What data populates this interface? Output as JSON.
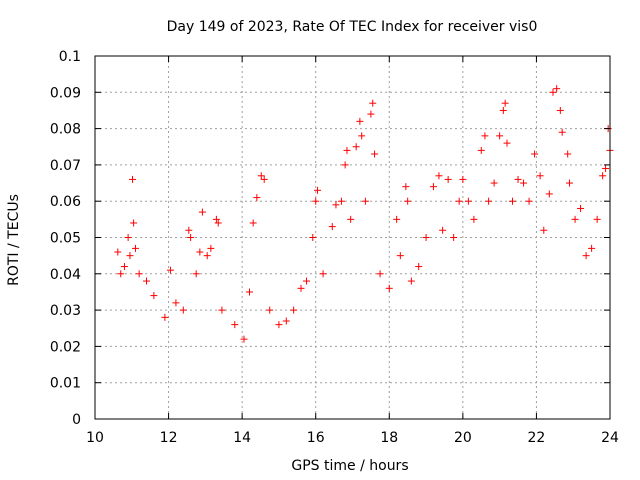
{
  "chart_data": {
    "type": "scatter",
    "title": "Day 149 of 2023, Rate Of TEC Index for receiver vis0",
    "xlabel": "GPS time / hours",
    "ylabel": "ROTI / TECUs",
    "xlim": [
      10,
      24
    ],
    "ylim": [
      0,
      0.1
    ],
    "x_ticks": [
      10,
      12,
      14,
      16,
      18,
      20,
      22,
      24
    ],
    "x_tick_labels": [
      "10",
      "12",
      "14",
      "16",
      "18",
      "20",
      "22",
      "24"
    ],
    "y_ticks": [
      0,
      0.01,
      0.02,
      0.03,
      0.04,
      0.05,
      0.06,
      0.07,
      0.08,
      0.09,
      0.1
    ],
    "y_tick_labels": [
      "0",
      "0.01",
      "0.02",
      "0.03",
      "0.04",
      "0.05",
      "0.06",
      "0.07",
      "0.08",
      "0.09",
      "0.1"
    ],
    "grid": true,
    "marker": "+",
    "color": "#ff0000",
    "series": [
      {
        "name": "vis0",
        "points": [
          [
            10.62,
            0.046
          ],
          [
            10.7,
            0.04
          ],
          [
            10.8,
            0.042
          ],
          [
            10.9,
            0.05
          ],
          [
            10.95,
            0.045
          ],
          [
            11.02,
            0.066
          ],
          [
            11.05,
            0.054
          ],
          [
            11.1,
            0.047
          ],
          [
            11.2,
            0.04
          ],
          [
            11.4,
            0.038
          ],
          [
            11.6,
            0.034
          ],
          [
            11.9,
            0.028
          ],
          [
            12.05,
            0.041
          ],
          [
            12.2,
            0.032
          ],
          [
            12.4,
            0.03
          ],
          [
            12.55,
            0.052
          ],
          [
            12.6,
            0.05
          ],
          [
            12.75,
            0.04
          ],
          [
            12.85,
            0.046
          ],
          [
            12.92,
            0.057
          ],
          [
            13.05,
            0.045
          ],
          [
            13.15,
            0.047
          ],
          [
            13.3,
            0.055
          ],
          [
            13.35,
            0.054
          ],
          [
            13.45,
            0.03
          ],
          [
            13.8,
            0.026
          ],
          [
            14.05,
            0.022
          ],
          [
            14.2,
            0.035
          ],
          [
            14.3,
            0.054
          ],
          [
            14.4,
            0.061
          ],
          [
            14.52,
            0.067
          ],
          [
            14.6,
            0.066
          ],
          [
            14.75,
            0.03
          ],
          [
            15.0,
            0.026
          ],
          [
            15.2,
            0.027
          ],
          [
            15.4,
            0.03
          ],
          [
            15.6,
            0.036
          ],
          [
            15.75,
            0.038
          ],
          [
            15.92,
            0.05
          ],
          [
            16.0,
            0.06
          ],
          [
            16.05,
            0.063
          ],
          [
            16.2,
            0.04
          ],
          [
            16.45,
            0.053
          ],
          [
            16.55,
            0.059
          ],
          [
            16.7,
            0.06
          ],
          [
            16.8,
            0.07
          ],
          [
            16.85,
            0.074
          ],
          [
            16.95,
            0.055
          ],
          [
            17.1,
            0.075
          ],
          [
            17.2,
            0.082
          ],
          [
            17.25,
            0.078
          ],
          [
            17.35,
            0.06
          ],
          [
            17.5,
            0.084
          ],
          [
            17.55,
            0.087
          ],
          [
            17.6,
            0.073
          ],
          [
            17.75,
            0.04
          ],
          [
            18.0,
            0.036
          ],
          [
            18.2,
            0.055
          ],
          [
            18.3,
            0.045
          ],
          [
            18.45,
            0.064
          ],
          [
            18.5,
            0.06
          ],
          [
            18.6,
            0.038
          ],
          [
            18.8,
            0.042
          ],
          [
            19.0,
            0.05
          ],
          [
            19.2,
            0.064
          ],
          [
            19.35,
            0.067
          ],
          [
            19.45,
            0.052
          ],
          [
            19.6,
            0.066
          ],
          [
            19.75,
            0.05
          ],
          [
            19.9,
            0.06
          ],
          [
            20.0,
            0.066
          ],
          [
            20.15,
            0.06
          ],
          [
            20.3,
            0.055
          ],
          [
            20.5,
            0.074
          ],
          [
            20.6,
            0.078
          ],
          [
            20.7,
            0.06
          ],
          [
            20.85,
            0.065
          ],
          [
            21.0,
            0.078
          ],
          [
            21.1,
            0.085
          ],
          [
            21.15,
            0.087
          ],
          [
            21.2,
            0.076
          ],
          [
            21.35,
            0.06
          ],
          [
            21.5,
            0.066
          ],
          [
            21.65,
            0.065
          ],
          [
            21.8,
            0.06
          ],
          [
            21.95,
            0.073
          ],
          [
            22.1,
            0.067
          ],
          [
            22.2,
            0.052
          ],
          [
            22.35,
            0.062
          ],
          [
            22.45,
            0.09
          ],
          [
            22.55,
            0.091
          ],
          [
            22.65,
            0.085
          ],
          [
            22.7,
            0.079
          ],
          [
            22.85,
            0.073
          ],
          [
            22.9,
            0.065
          ],
          [
            23.05,
            0.055
          ],
          [
            23.2,
            0.058
          ],
          [
            23.35,
            0.045
          ],
          [
            23.5,
            0.047
          ],
          [
            23.65,
            0.055
          ],
          [
            23.8,
            0.067
          ],
          [
            23.88,
            0.069
          ],
          [
            23.95,
            0.08
          ],
          [
            24.0,
            0.074
          ]
        ]
      }
    ]
  }
}
